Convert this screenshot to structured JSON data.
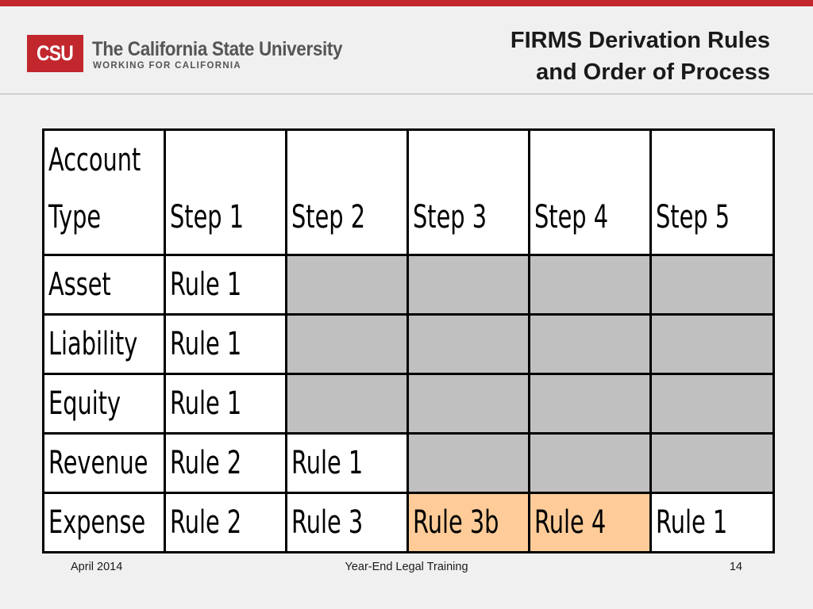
{
  "colors": {
    "brand_red": "#c1272d",
    "empty_cell": "#c0c0c0",
    "highlight_cell": "#ffcc99"
  },
  "logo": {
    "abbr": "CSU",
    "name": "The California State University",
    "tagline": "WORKING FOR CALIFORNIA"
  },
  "title": {
    "line1": "FIRMS Derivation Rules",
    "line2": "and Order of Process"
  },
  "table": {
    "headers": [
      "Account\nType",
      "Step 1",
      "Step 2",
      "Step 3",
      "Step 4",
      "Step 5"
    ],
    "rows": [
      {
        "account": "Asset",
        "cells": [
          {
            "text": "Rule 1"
          },
          null,
          null,
          null,
          null
        ]
      },
      {
        "account": "Liability",
        "cells": [
          {
            "text": "Rule 1"
          },
          null,
          null,
          null,
          null
        ]
      },
      {
        "account": "Equity",
        "cells": [
          {
            "text": "Rule 1"
          },
          null,
          null,
          null,
          null
        ]
      },
      {
        "account": "Revenue",
        "cells": [
          {
            "text": "Rule 2"
          },
          {
            "text": "Rule 1"
          },
          null,
          null,
          null
        ]
      },
      {
        "account": "Expense",
        "cells": [
          {
            "text": "Rule 2"
          },
          {
            "text": "Rule 3"
          },
          {
            "text": "Rule 3b",
            "highlight": true
          },
          {
            "text": "Rule 4",
            "highlight": true
          },
          {
            "text": "Rule 1"
          }
        ]
      }
    ]
  },
  "footer": {
    "date": "April 2014",
    "center": "Year-End Legal Training",
    "page": "14"
  }
}
